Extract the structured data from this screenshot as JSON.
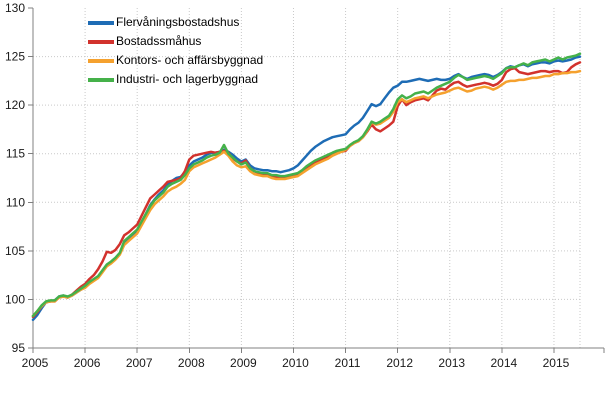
{
  "chart_data": {
    "type": "line",
    "title": "",
    "xlabel": "",
    "ylabel": "",
    "ylim": [
      95,
      130
    ],
    "y_ticks": [
      95,
      100,
      105,
      110,
      115,
      120,
      125,
      130
    ],
    "x_tick_labels": [
      "2005",
      "2006",
      "2007",
      "2008",
      "2009",
      "2010",
      "2011",
      "2012",
      "2013",
      "2014",
      "2015"
    ],
    "x_start_year": 2005,
    "points_per_year": 12,
    "grid": "dotted-light-gray",
    "legend_position": "top-left-inside",
    "axis_color": "#808080",
    "grid_color": "#c9c9c9",
    "series": [
      {
        "name": "Flervåningsbostadshus",
        "color": "#1E6CB5",
        "values": [
          97.9,
          98.4,
          99.1,
          99.7,
          99.8,
          99.9,
          100.3,
          100.4,
          100.2,
          100.4,
          100.7,
          101.0,
          101.3,
          101.7,
          102.0,
          102.3,
          102.9,
          103.5,
          103.8,
          104.2,
          104.7,
          105.8,
          106.2,
          106.6,
          107.0,
          107.9,
          108.8,
          109.7,
          110.3,
          110.8,
          111.2,
          111.8,
          112.2,
          112.5,
          112.6,
          113.1,
          113.8,
          114.2,
          114.4,
          114.6,
          114.9,
          115.1,
          115.1,
          115.2,
          115.4,
          115.2,
          114.9,
          114.5,
          114.2,
          114.4,
          113.8,
          113.5,
          113.4,
          113.3,
          113.3,
          113.2,
          113.2,
          113.1,
          113.2,
          113.3,
          113.5,
          113.8,
          114.3,
          114.8,
          115.3,
          115.7,
          116.0,
          116.3,
          116.5,
          116.7,
          116.8,
          116.9,
          117.0,
          117.5,
          117.9,
          118.2,
          118.7,
          119.4,
          120.1,
          119.9,
          120.1,
          120.7,
          121.3,
          121.8,
          122.0,
          122.4,
          122.4,
          122.5,
          122.6,
          122.7,
          122.6,
          122.5,
          122.6,
          122.7,
          122.6,
          122.6,
          122.7,
          123.0,
          123.2,
          122.9,
          122.7,
          122.9,
          123.0,
          123.1,
          123.2,
          123.1,
          122.9,
          123.1,
          123.4,
          123.8,
          124.0,
          123.9,
          124.1,
          124.2,
          124.0,
          124.2,
          124.3,
          124.4,
          124.4,
          124.3,
          124.5,
          124.6,
          124.5,
          124.6,
          124.7,
          124.9,
          125.0
        ]
      },
      {
        "name": "Bostadssmåhus",
        "color": "#D2322D",
        "values": [
          98.2,
          98.7,
          99.3,
          99.7,
          99.8,
          99.8,
          100.2,
          100.3,
          100.2,
          100.5,
          100.9,
          101.3,
          101.6,
          102.1,
          102.5,
          103.1,
          103.9,
          104.9,
          104.8,
          105.1,
          105.7,
          106.6,
          106.9,
          107.3,
          107.7,
          108.6,
          109.5,
          110.4,
          110.8,
          111.2,
          111.6,
          112.1,
          112.2,
          112.3,
          112.5,
          113.2,
          114.4,
          114.8,
          114.9,
          115.0,
          115.1,
          115.2,
          115.1,
          115.2,
          115.3,
          115.1,
          114.5,
          114.2,
          114.0,
          114.3,
          113.5,
          113.2,
          113.0,
          112.9,
          112.9,
          112.6,
          112.6,
          112.5,
          112.5,
          112.6,
          112.7,
          112.8,
          113.1,
          113.5,
          113.8,
          114.1,
          114.3,
          114.5,
          114.7,
          114.9,
          115.1,
          115.2,
          115.3,
          115.8,
          116.1,
          116.3,
          116.7,
          117.3,
          118.0,
          117.5,
          117.3,
          117.6,
          117.9,
          118.3,
          119.9,
          120.6,
          120.0,
          120.3,
          120.5,
          120.6,
          120.7,
          120.5,
          121.0,
          121.5,
          121.7,
          121.6,
          122.0,
          122.3,
          122.4,
          122.1,
          121.9,
          122.0,
          122.1,
          122.2,
          122.3,
          122.2,
          122.0,
          122.2,
          122.6,
          123.4,
          123.7,
          123.8,
          123.4,
          123.3,
          123.2,
          123.3,
          123.4,
          123.5,
          123.5,
          123.4,
          123.5,
          123.5,
          123.3,
          123.4,
          123.9,
          124.2,
          124.4
        ]
      },
      {
        "name": "Kontors- och affärsbyggnad",
        "color": "#F5A12E",
        "values": [
          98.3,
          98.8,
          99.3,
          99.7,
          99.8,
          99.8,
          100.2,
          100.3,
          100.2,
          100.4,
          100.7,
          101.0,
          101.2,
          101.6,
          101.9,
          102.2,
          102.8,
          103.4,
          103.7,
          104.1,
          104.6,
          105.6,
          106.0,
          106.4,
          106.8,
          107.6,
          108.4,
          109.2,
          109.8,
          110.2,
          110.6,
          111.1,
          111.4,
          111.6,
          111.9,
          112.3,
          113.2,
          113.6,
          113.8,
          114.0,
          114.2,
          114.4,
          114.6,
          114.9,
          115.2,
          114.8,
          114.2,
          113.8,
          113.6,
          113.7,
          113.2,
          112.9,
          112.8,
          112.7,
          112.7,
          112.5,
          112.4,
          112.4,
          112.4,
          112.5,
          112.6,
          112.7,
          113.0,
          113.3,
          113.6,
          113.9,
          114.1,
          114.3,
          114.5,
          114.8,
          115.0,
          115.2,
          115.4,
          115.8,
          116.1,
          116.3,
          116.7,
          117.4,
          118.2,
          118.0,
          118.1,
          118.4,
          118.7,
          119.3,
          120.3,
          120.6,
          120.3,
          120.5,
          120.7,
          120.8,
          120.9,
          120.7,
          120.9,
          121.1,
          121.2,
          121.3,
          121.5,
          121.7,
          121.8,
          121.6,
          121.4,
          121.5,
          121.7,
          121.8,
          121.9,
          121.8,
          121.6,
          121.8,
          122.1,
          122.4,
          122.5,
          122.5,
          122.6,
          122.6,
          122.7,
          122.8,
          122.8,
          122.9,
          123.0,
          123.0,
          123.2,
          123.2,
          123.3,
          123.3,
          123.4,
          123.4,
          123.5
        ]
      },
      {
        "name": "Industri- och lagerbyggnad",
        "color": "#45B14A",
        "values": [
          98.3,
          98.8,
          99.4,
          99.8,
          99.9,
          99.9,
          100.3,
          100.4,
          100.3,
          100.5,
          100.8,
          101.1,
          101.4,
          101.8,
          102.1,
          102.4,
          103.0,
          103.6,
          103.9,
          104.3,
          104.8,
          106.0,
          106.4,
          106.8,
          107.2,
          108.0,
          108.8,
          109.6,
          110.2,
          110.6,
          111.0,
          111.6,
          111.9,
          112.1,
          112.3,
          112.8,
          113.5,
          113.9,
          114.1,
          114.3,
          114.6,
          114.8,
          114.9,
          115.1,
          115.9,
          115.0,
          114.6,
          114.2,
          113.9,
          114.1,
          113.5,
          113.2,
          113.1,
          113.0,
          113.0,
          112.8,
          112.8,
          112.7,
          112.7,
          112.8,
          112.9,
          113.0,
          113.3,
          113.7,
          114.0,
          114.3,
          114.5,
          114.7,
          114.9,
          115.1,
          115.3,
          115.4,
          115.5,
          115.9,
          116.2,
          116.4,
          116.8,
          117.5,
          118.3,
          118.1,
          118.3,
          118.6,
          118.9,
          119.6,
          120.6,
          121.0,
          120.7,
          120.9,
          121.2,
          121.3,
          121.4,
          121.2,
          121.5,
          121.8,
          122.0,
          122.2,
          122.4,
          122.8,
          123.1,
          122.9,
          122.6,
          122.7,
          122.8,
          122.9,
          123.0,
          122.9,
          122.7,
          123.0,
          123.3,
          123.8,
          123.9,
          123.9,
          124.1,
          124.3,
          124.1,
          124.4,
          124.5,
          124.6,
          124.7,
          124.5,
          124.7,
          124.9,
          124.7,
          124.9,
          125.0,
          125.1,
          125.3
        ]
      }
    ]
  }
}
